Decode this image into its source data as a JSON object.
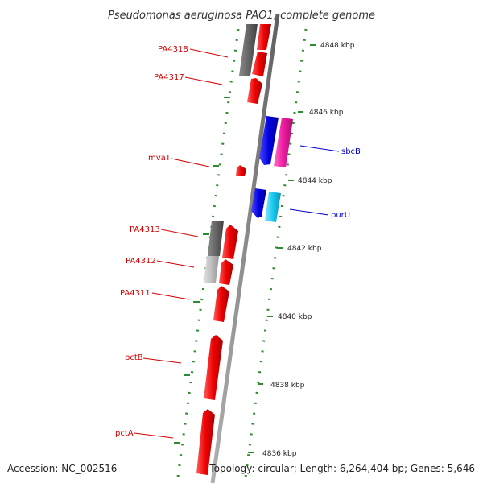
{
  "title": "Pseudomonas aeruginosa PAO1, complete genome",
  "accession": "Accession: NC_002516",
  "topology": "Topology: circular; Length: 6,264,404 bp; Genes: 5,646",
  "colors": {
    "backbone": "#8c8c8c",
    "tick": "#2e8b2e",
    "label_red": "#d40000",
    "label_blue": "#0000cc",
    "gene_red": "#ee0000",
    "gene_blue": "#0000e0",
    "gene_cyan": "#19c8f0",
    "gene_magenta": "#ee1aa0",
    "gene_darkgray": "#666666",
    "gene_lightgray": "#bfbfbf"
  },
  "scale": {
    "ticks": [
      {
        "label": "4848 kbp"
      },
      {
        "label": "4846 kbp"
      },
      {
        "label": "4844 kbp"
      },
      {
        "label": "4842 kbp"
      },
      {
        "label": "4840 kbp"
      },
      {
        "label": "4838 kbp"
      },
      {
        "label": "4836 kbp"
      }
    ]
  },
  "labels": [
    {
      "text": "PA4318",
      "color": "label_red"
    },
    {
      "text": "PA4317",
      "color": "label_red"
    },
    {
      "text": "mvaT",
      "color": "label_red"
    },
    {
      "text": "PA4313",
      "color": "label_red"
    },
    {
      "text": "PA4312",
      "color": "label_red"
    },
    {
      "text": "PA4311",
      "color": "label_red"
    },
    {
      "text": "pctB",
      "color": "label_red"
    },
    {
      "text": "pctA",
      "color": "label_red"
    },
    {
      "text": "sbcB",
      "color": "label_blue"
    },
    {
      "text": "purU",
      "color": "label_blue"
    }
  ]
}
